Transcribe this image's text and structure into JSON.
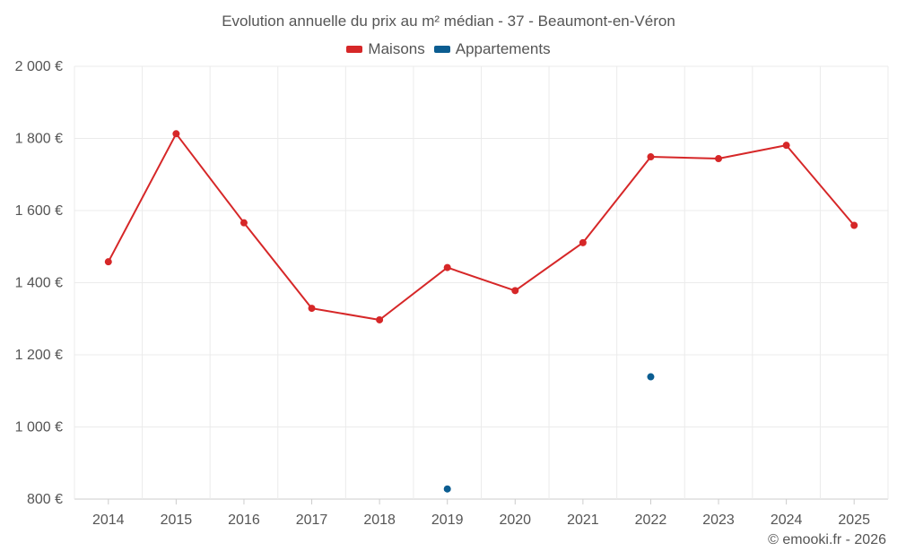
{
  "chart_data": {
    "type": "line",
    "title": "Evolution annuelle du prix au m² médian - 37 - Beaumont-en-Véron",
    "categories": [
      "2014",
      "2015",
      "2016",
      "2017",
      "2018",
      "2019",
      "2020",
      "2021",
      "2022",
      "2023",
      "2024",
      "2025"
    ],
    "series": [
      {
        "name": "Maisons",
        "color": "#d62728",
        "values": [
          1458,
          1813,
          1566,
          1329,
          1297,
          1442,
          1378,
          1511,
          1749,
          1744,
          1781,
          1559
        ]
      },
      {
        "name": "Appartements",
        "color": "#0b5d91",
        "values": [
          null,
          null,
          null,
          null,
          null,
          828,
          null,
          null,
          1139,
          null,
          null,
          null
        ]
      }
    ],
    "ylim": [
      800,
      2000
    ],
    "yticks": [
      800,
      1000,
      1200,
      1400,
      1600,
      1800,
      2000
    ],
    "ytick_labels": [
      "800 €",
      "1 000 €",
      "1 200 €",
      "1 400 €",
      "1 600 €",
      "1 800 €",
      "2 000 €"
    ],
    "xlabel": "",
    "ylabel": "",
    "grid": true,
    "legend_position": "top-center"
  },
  "credit": "© emooki.fr - 2026"
}
